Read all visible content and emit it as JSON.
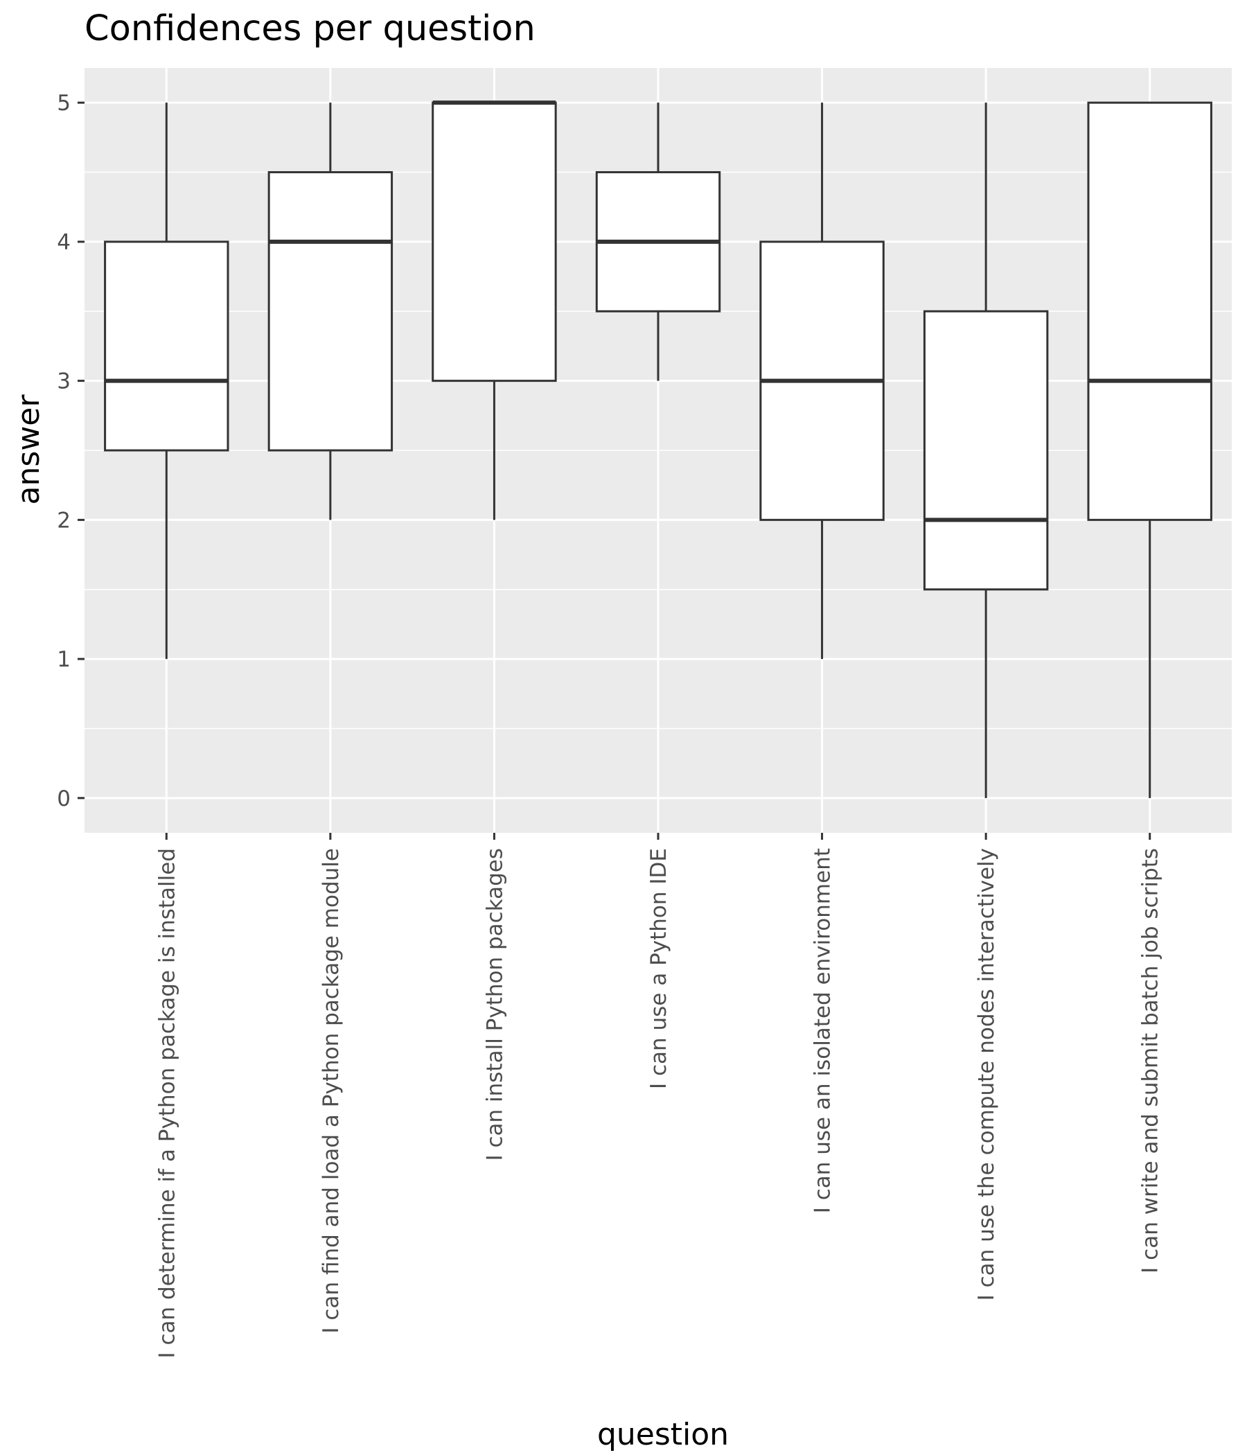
{
  "chart_data": {
    "type": "boxplot",
    "title": "Confidences per question",
    "xlabel": "question",
    "ylabel": "answer",
    "ylim": [
      -0.25,
      5.25
    ],
    "yticks": [
      0,
      1,
      2,
      3,
      4,
      5
    ],
    "grid": true,
    "legend": "none",
    "categories": [
      "I can determine if a Python package is installed",
      "I can find and load a Python package module",
      "I can install Python packages",
      "I can use a Python IDE",
      "I can use an isolated environment",
      "I can use the compute nodes interactively",
      "I can write and submit batch job scripts"
    ],
    "boxes": [
      {
        "whisker_low": 1,
        "q1": 2.5,
        "median": 3,
        "q3": 4,
        "whisker_high": 5
      },
      {
        "whisker_low": 2,
        "q1": 2.5,
        "median": 4,
        "q3": 4.5,
        "whisker_high": 5
      },
      {
        "whisker_low": 2,
        "q1": 3,
        "median": 5,
        "q3": 5,
        "whisker_high": 5
      },
      {
        "whisker_low": 3,
        "q1": 3.5,
        "median": 4,
        "q3": 4.5,
        "whisker_high": 5
      },
      {
        "whisker_low": 1,
        "q1": 2,
        "median": 3,
        "q3": 4,
        "whisker_high": 5
      },
      {
        "whisker_low": 0,
        "q1": 1.5,
        "median": 2,
        "q3": 3.5,
        "whisker_high": 5
      },
      {
        "whisker_low": 0,
        "q1": 2,
        "median": 3,
        "q3": 5,
        "whisker_high": 5
      }
    ],
    "colors": {
      "panel_background": "#ebebeb",
      "grid": "#ffffff",
      "box_fill": "#ffffff",
      "box_stroke": "#333333",
      "tick_text": "#4d4d4d"
    }
  }
}
